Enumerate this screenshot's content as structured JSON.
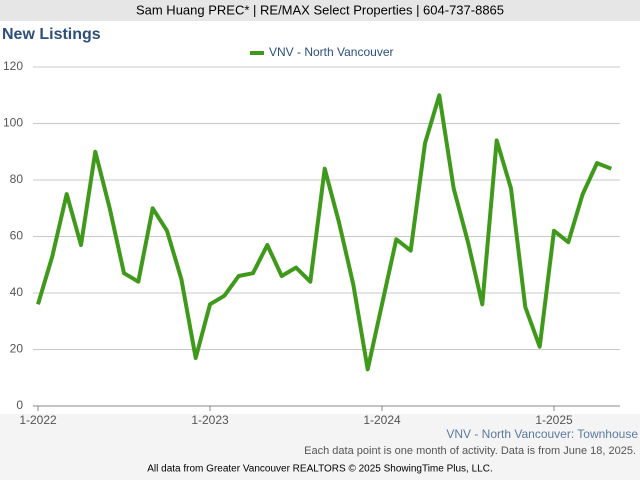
{
  "header": {
    "text": "Sam Huang PREC* | RE/MAX Select Properties | 604-737-8865"
  },
  "chart_data": {
    "type": "line",
    "title": "New Listings",
    "subtitle": "VNV - North Vancouver: Townhouse",
    "note": "Each data point is one month of activity. Data is from June 18, 2025.",
    "categories": [
      "1-2022",
      null,
      null,
      null,
      null,
      null,
      null,
      null,
      null,
      null,
      null,
      null,
      "1-2023",
      null,
      null,
      null,
      null,
      null,
      null,
      null,
      null,
      null,
      null,
      null,
      "1-2024",
      null,
      null,
      null,
      null,
      null,
      null,
      null,
      null,
      null,
      null,
      null,
      "1-2025",
      null,
      null,
      null,
      null
    ],
    "series": [
      {
        "name": "VNV - North Vancouver",
        "color": "#3f9a1c",
        "values": [
          36,
          53,
          75,
          57,
          90,
          70,
          47,
          44,
          70,
          62,
          45,
          17,
          36,
          39,
          46,
          47,
          57,
          46,
          49,
          44,
          84,
          65,
          43,
          13,
          36,
          59,
          55,
          93,
          110,
          77,
          58,
          36,
          94,
          77,
          35,
          21,
          62,
          58,
          75,
          86,
          84
        ]
      }
    ],
    "ylim": [
      0,
      120
    ],
    "yticks": [
      0,
      20,
      40,
      60,
      80,
      100,
      120
    ],
    "grid": true
  },
  "footer": {
    "text": "All data from Greater Vancouver REALTORS © 2025 ShowingTime Plus, LLC."
  }
}
